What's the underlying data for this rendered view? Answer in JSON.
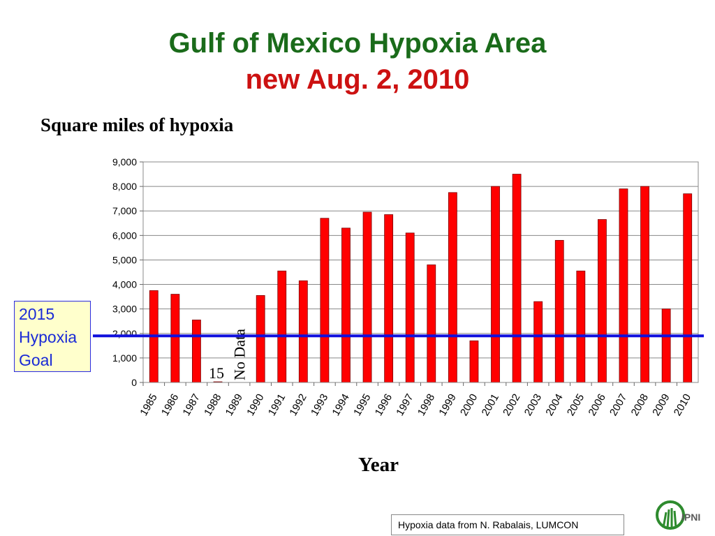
{
  "slide": {
    "title": "Gulf of Mexico Hypoxia Area",
    "subtitle": "new Aug. 2, 2010",
    "ylabel": "Square miles of hypoxia",
    "xlabel": "Year",
    "goal_label": [
      "2015",
      "Hypoxia",
      "Goal"
    ],
    "source": "Hypoxia data from N. Rabalais, LUMCON",
    "logo_text": "IPNI"
  },
  "colors": {
    "title": "#1a6b1a",
    "subtitle": "#cc1111",
    "bar": "#ff0000",
    "goal_line": "#1010dd",
    "goal_box_bg": "#ffffcc",
    "goal_box_text": "#1a2ad6"
  },
  "chart_data": {
    "type": "bar",
    "categories": [
      "1985",
      "1986",
      "1987",
      "1988",
      "1989",
      "1990",
      "1991",
      "1992",
      "1993",
      "1994",
      "1995",
      "1996",
      "1997",
      "1998",
      "1999",
      "2000",
      "2001",
      "2002",
      "2003",
      "2004",
      "2005",
      "2006",
      "2007",
      "2008",
      "2009",
      "2010"
    ],
    "values": [
      3750,
      3600,
      2550,
      15,
      null,
      3550,
      4550,
      4150,
      6700,
      6300,
      6950,
      6850,
      6100,
      4800,
      7750,
      1700,
      8000,
      8500,
      3300,
      5800,
      4550,
      6650,
      7900,
      8000,
      3000,
      7700
    ],
    "ylim": [
      0,
      9000
    ],
    "yticks": [
      "0",
      "1,000",
      "2,000",
      "3,000",
      "4,000",
      "5,000",
      "6,000",
      "7,000",
      "8,000",
      "9,000"
    ],
    "grid": true,
    "goal_value": 1900,
    "annotations": [
      {
        "category": "1988",
        "text": "15"
      },
      {
        "category": "1989",
        "text": "No Data"
      }
    ]
  }
}
